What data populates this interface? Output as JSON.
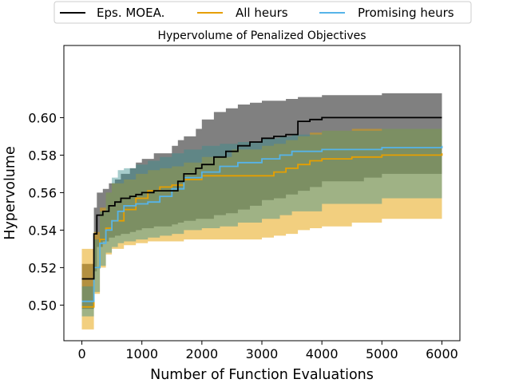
{
  "chart_data": {
    "type": "line",
    "title": "Hypervolume of Penalized Objectives",
    "xlabel": "Number of Function Evaluations",
    "ylabel": "Hypervolume",
    "xlim": [
      -300,
      6300
    ],
    "ylim": [
      0.481,
      0.6385
    ],
    "xticks": [
      0,
      1000,
      2000,
      3000,
      4000,
      5000,
      6000
    ],
    "xtick_labels": [
      "0",
      "1000",
      "2000",
      "3000",
      "4000",
      "5000",
      "6000"
    ],
    "yticks": [
      0.5,
      0.52,
      0.54,
      0.56,
      0.58,
      0.6
    ],
    "ytick_labels": [
      "0.50",
      "0.52",
      "0.54",
      "0.56",
      "0.58",
      "0.60"
    ],
    "grid": false,
    "legend_placement": "top, outside plot",
    "series": [
      {
        "name": "Eps. MOEA.",
        "color": "#000000",
        "band_color": "#808080",
        "band_opacity": 1.0,
        "x": [
          0,
          100,
          200,
          250,
          350,
          450,
          550,
          650,
          800,
          900,
          1000,
          1200,
          1500,
          1600,
          1700,
          1900,
          2000,
          2200,
          2400,
          2600,
          2800,
          3000,
          3200,
          3400,
          3600,
          3800,
          4000,
          4700,
          5000,
          6000
        ],
        "mean": [
          0.514,
          0.514,
          0.538,
          0.548,
          0.55,
          0.553,
          0.555,
          0.557,
          0.558,
          0.559,
          0.56,
          0.561,
          0.561,
          0.566,
          0.57,
          0.573,
          0.575,
          0.579,
          0.582,
          0.585,
          0.587,
          0.589,
          0.59,
          0.591,
          0.598,
          0.599,
          0.6,
          0.6,
          0.6,
          0.6
        ],
        "lower": [
          0.498,
          0.498,
          0.518,
          0.531,
          0.534,
          0.536,
          0.537,
          0.538,
          0.539,
          0.54,
          0.541,
          0.542,
          0.543,
          0.544,
          0.545,
          0.546,
          0.546,
          0.548,
          0.549,
          0.551,
          0.553,
          0.556,
          0.557,
          0.559,
          0.561,
          0.563,
          0.566,
          0.568,
          0.57,
          0.572
        ],
        "upper": [
          0.522,
          0.522,
          0.552,
          0.56,
          0.562,
          0.565,
          0.567,
          0.57,
          0.573,
          0.576,
          0.578,
          0.581,
          0.585,
          0.588,
          0.59,
          0.594,
          0.599,
          0.603,
          0.605,
          0.607,
          0.608,
          0.609,
          0.609,
          0.61,
          0.611,
          0.611,
          0.612,
          0.612,
          0.613,
          0.613
        ]
      },
      {
        "name": "All heurs",
        "color": "#E69F00",
        "band_color": "#E69F00",
        "band_opacity": 0.5,
        "x": [
          0,
          100,
          200,
          300,
          400,
          500,
          700,
          900,
          1100,
          1300,
          1500,
          1700,
          2000,
          2500,
          3000,
          3200,
          3400,
          3600,
          3800,
          4000,
          4500,
          5000,
          6000
        ],
        "mean": [
          0.499,
          0.499,
          0.52,
          0.535,
          0.541,
          0.545,
          0.551,
          0.557,
          0.561,
          0.563,
          0.564,
          0.567,
          0.569,
          0.569,
          0.569,
          0.571,
          0.573,
          0.575,
          0.577,
          0.578,
          0.579,
          0.58,
          0.581
        ],
        "lower": [
          0.487,
          0.487,
          0.506,
          0.52,
          0.527,
          0.53,
          0.532,
          0.533,
          0.534,
          0.534,
          0.534,
          0.535,
          0.535,
          0.535,
          0.536,
          0.537,
          0.538,
          0.54,
          0.541,
          0.542,
          0.544,
          0.546,
          0.557
        ],
        "upper": [
          0.53,
          0.53,
          0.539,
          0.552,
          0.56,
          0.565,
          0.567,
          0.57,
          0.572,
          0.573,
          0.574,
          0.576,
          0.579,
          0.583,
          0.585,
          0.586,
          0.588,
          0.59,
          0.592,
          0.593,
          0.594,
          0.594,
          0.595
        ]
      },
      {
        "name": "Promising heurs",
        "color": "#56B4E9",
        "band_color": "#3A8F8F",
        "band_opacity": 0.45,
        "x": [
          0,
          100,
          200,
          300,
          400,
          500,
          600,
          700,
          900,
          1100,
          1300,
          1500,
          1700,
          2000,
          2300,
          2600,
          3000,
          3300,
          3500,
          4000,
          5000,
          6000
        ],
        "mean": [
          0.502,
          0.502,
          0.52,
          0.533,
          0.54,
          0.545,
          0.55,
          0.553,
          0.554,
          0.555,
          0.558,
          0.562,
          0.568,
          0.571,
          0.574,
          0.576,
          0.578,
          0.58,
          0.582,
          0.583,
          0.584,
          0.585
        ],
        "lower": [
          0.494,
          0.494,
          0.507,
          0.521,
          0.528,
          0.531,
          0.533,
          0.534,
          0.535,
          0.536,
          0.537,
          0.538,
          0.54,
          0.541,
          0.542,
          0.544,
          0.546,
          0.548,
          0.55,
          0.554,
          0.557,
          0.56
        ],
        "upper": [
          0.51,
          0.51,
          0.535,
          0.55,
          0.56,
          0.568,
          0.572,
          0.573,
          0.575,
          0.577,
          0.579,
          0.581,
          0.583,
          0.585,
          0.586,
          0.587,
          0.589,
          0.59,
          0.591,
          0.593,
          0.594,
          0.595
        ]
      }
    ]
  }
}
